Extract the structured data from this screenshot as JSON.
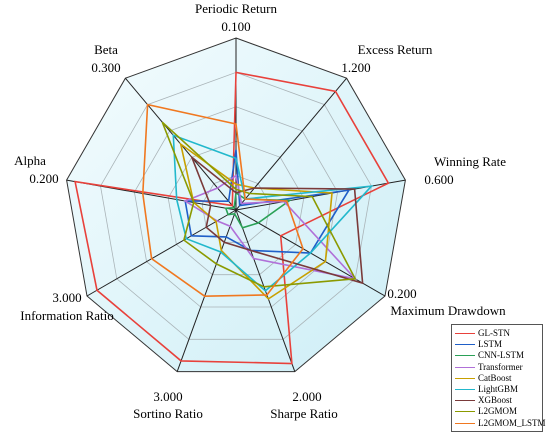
{
  "chart_data": {
    "type": "radar",
    "axes": [
      {
        "name": "Periodic Return",
        "max_label": "0.100",
        "max": 0.1
      },
      {
        "name": "Excess Return",
        "max_label": "1.200",
        "max": 1.2
      },
      {
        "name": "Winning Rate",
        "max_label": "0.600",
        "max": 0.6
      },
      {
        "name": "Maximum Drawdown",
        "max_label": "0.200",
        "max": 0.2
      },
      {
        "name": "Sharpe Ratio",
        "max_label": "2.000",
        "max": 2.0
      },
      {
        "name": "Sortino Ratio",
        "max_label": "3.000",
        "max": 3.0
      },
      {
        "name": "Information Ratio",
        "max_label": "3.000",
        "max": 3.0
      },
      {
        "name": "Alpha",
        "max_label": "0.200",
        "max": 0.2
      },
      {
        "name": "Beta",
        "max_label": "0.300",
        "max": 0.3
      }
    ],
    "rings": 5,
    "series": [
      {
        "name": "GL-STN",
        "color": "#e8413b",
        "values": [
          0.08,
          1.08,
          0.54,
          0.06,
          1.9,
          2.8,
          2.8,
          0.19,
          0.01
        ]
      },
      {
        "name": "LSTM",
        "color": "#1f5fc8",
        "values": [
          0.035,
          0.04,
          0.4,
          0.1,
          0.5,
          0.5,
          0.9,
          0.06,
          0.02
        ]
      },
      {
        "name": "CNN-LSTM",
        "color": "#2aa157",
        "values": [
          0.01,
          0.1,
          0.19,
          0.03,
          0.22,
          0.07,
          0.16,
          0.012,
          0.005
        ]
      },
      {
        "name": "Transformer",
        "color": "#b070d8",
        "values": [
          0.02,
          0.06,
          0.17,
          0.16,
          0.6,
          0.3,
          0.38,
          0.06,
          0.05
        ]
      },
      {
        "name": "CatBoost",
        "color": "#c8a000",
        "values": [
          0.015,
          0.2,
          0.34,
          0.12,
          1.1,
          0.75,
          0.4,
          0.05,
          0.15
        ]
      },
      {
        "name": "LightGBM",
        "color": "#22b8cc",
        "values": [
          0.03,
          0.1,
          0.48,
          0.1,
          1.0,
          0.78,
          1.0,
          0.07,
          0.17
        ]
      },
      {
        "name": "XGBoost",
        "color": "#7a3a3a",
        "values": [
          0.01,
          0.2,
          0.42,
          0.17,
          0.5,
          0.6,
          0.6,
          0.03,
          0.12
        ]
      },
      {
        "name": "L2GMOM",
        "color": "#8b9a00",
        "values": [
          0.012,
          0.15,
          0.27,
          0.16,
          0.95,
          1.0,
          1.05,
          0.05,
          0.2
        ]
      },
      {
        "name": "L2GMOM_LSTM",
        "color": "#f07820",
        "values": [
          0.05,
          0.1,
          0.18,
          0.09,
          1.05,
          1.6,
          1.7,
          0.11,
          0.24
        ]
      }
    ],
    "grid": true,
    "legend_position": "bottom-right"
  }
}
